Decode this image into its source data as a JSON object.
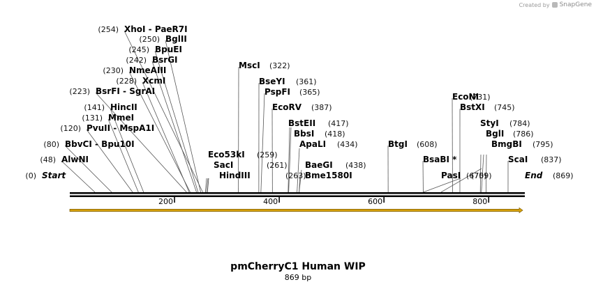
{
  "header": {
    "credit_text": "Created by",
    "brand_name": "SnapGene"
  },
  "map": {
    "title": "pmCherryC1 Human WIP",
    "length_label": "869 bp",
    "sequence_length": 869,
    "feature_arrow_color": "#d8a20f",
    "backbone_color": "#000000",
    "ruler_ticks": [
      {
        "pos": 200,
        "label": "200"
      },
      {
        "pos": 400,
        "label": "400"
      },
      {
        "pos": 600,
        "label": "600"
      },
      {
        "pos": 800,
        "label": "800"
      }
    ],
    "sites": [
      {
        "name": "Start",
        "pos_label": "(0)",
        "pos": 0,
        "terminal": true
      },
      {
        "name": "AlwNI",
        "pos_label": "(48)",
        "pos": 48
      },
      {
        "name": "BbvCI - Bpu10I",
        "pos_label": "(80)",
        "pos": 80
      },
      {
        "name": "PvuII - MspA1I",
        "pos_label": "(120)",
        "pos": 120
      },
      {
        "name": "MmeI",
        "pos_label": "(131)",
        "pos": 131
      },
      {
        "name": "HincII",
        "pos_label": "(141)",
        "pos": 141
      },
      {
        "name": "BsrFI - SgrAI",
        "pos_label": "(223)",
        "pos": 223
      },
      {
        "name": "XcmI",
        "pos_label": "(228)",
        "pos": 228
      },
      {
        "name": "NmeAIII",
        "pos_label": "(230)",
        "pos": 230
      },
      {
        "name": "BsrGI",
        "pos_label": "(242)",
        "pos": 242
      },
      {
        "name": "BpuEI",
        "pos_label": "(245)",
        "pos": 245
      },
      {
        "name": "BglII",
        "pos_label": "(250)",
        "pos": 250
      },
      {
        "name": "XhoI - PaeR7I",
        "pos_label": "(254)",
        "pos": 254
      },
      {
        "name": "Eco53kI",
        "pos_label": "(259)",
        "pos": 259
      },
      {
        "name": "SacI",
        "pos_label": "(261)",
        "pos": 261
      },
      {
        "name": "HindIII",
        "pos_label": "(263)",
        "pos": 263
      },
      {
        "name": "MscI",
        "pos_label": "(322)",
        "pos": 322
      },
      {
        "name": "BseYI",
        "pos_label": "(361)",
        "pos": 361
      },
      {
        "name": "PspFI",
        "pos_label": "(365)",
        "pos": 365
      },
      {
        "name": "EcoRV",
        "pos_label": "(387)",
        "pos": 387
      },
      {
        "name": "BstEII",
        "pos_label": "(417)",
        "pos": 417
      },
      {
        "name": "BbsI",
        "pos_label": "(418)",
        "pos": 418
      },
      {
        "name": "ApaLI",
        "pos_label": "(434)",
        "pos": 434
      },
      {
        "name": "BaeGI",
        "pos_label": "(438)",
        "pos": 438
      },
      {
        "name": "Bme1580I",
        "pos_label": "",
        "pos": 438
      },
      {
        "name": "BtgI",
        "pos_label": "(608)",
        "pos": 608
      },
      {
        "name": "BsaBI *",
        "pos_label": "",
        "pos": 675
      },
      {
        "name": "PasI",
        "pos_label": "(675)",
        "pos": 675
      },
      {
        "name": "EcoNI",
        "pos_label": "(731)",
        "pos": 731
      },
      {
        "name": "BstXI",
        "pos_label": "(745)",
        "pos": 745
      },
      {
        "name": "",
        "pos_label": "(709)",
        "pos": 709
      },
      {
        "name": "StyI",
        "pos_label": "(784)",
        "pos": 784
      },
      {
        "name": "BglI",
        "pos_label": "(786)",
        "pos": 786
      },
      {
        "name": "BmgBI",
        "pos_label": "(795)",
        "pos": 795
      },
      {
        "name": "ScaI",
        "pos_label": "(837)",
        "pos": 837
      },
      {
        "name": "End",
        "pos_label": "(869)",
        "pos": 869,
        "terminal": true
      }
    ]
  }
}
